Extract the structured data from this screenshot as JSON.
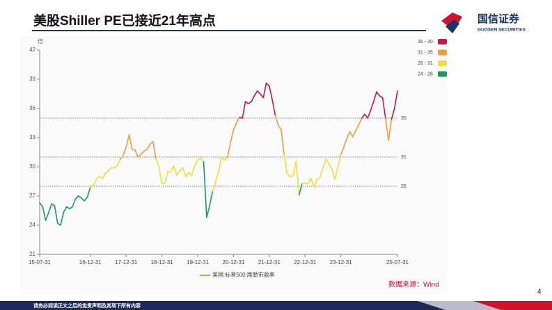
{
  "header": {
    "title": "美股Shiller PE已接近21年高点",
    "logo_name": "国信证券",
    "logo_sub": "GUOSEN SECURITIES"
  },
  "chart_data": {
    "type": "line",
    "y_label": "倍",
    "categories": [
      "15-07-31",
      null,
      null,
      null,
      null,
      null,
      null,
      null,
      null,
      null,
      null,
      null,
      null,
      null,
      null,
      null,
      null,
      "16-12-31",
      null,
      null,
      null,
      null,
      null,
      null,
      null,
      null,
      null,
      null,
      null,
      "17-12-31",
      null,
      null,
      null,
      null,
      null,
      null,
      null,
      null,
      null,
      null,
      null,
      "18-12-31",
      null,
      null,
      null,
      null,
      null,
      null,
      null,
      null,
      null,
      null,
      null,
      "19-12-31",
      null,
      null,
      null,
      null,
      null,
      null,
      null,
      null,
      null,
      null,
      null,
      "20-12-31",
      null,
      null,
      null,
      null,
      null,
      null,
      null,
      null,
      null,
      null,
      null,
      "21-12-31",
      null,
      null,
      null,
      null,
      null,
      null,
      null,
      null,
      null,
      null,
      null,
      "22-12-31",
      null,
      null,
      null,
      null,
      null,
      null,
      null,
      null,
      null,
      null,
      null,
      "23-12-31",
      null,
      null,
      null,
      null,
      null,
      null,
      null,
      null,
      null,
      null,
      null,
      null,
      null,
      null,
      null,
      null,
      null,
      null,
      "25-07-31"
    ],
    "series": [
      {
        "name": "美国:标普500:席勒市盈率",
        "color": "#f39a3d",
        "values": [
          26.3,
          25.9,
          24.5,
          25.3,
          26.2,
          26.0,
          24.2,
          24.0,
          25.3,
          25.9,
          25.7,
          25.9,
          26.7,
          27.0,
          26.8,
          26.5,
          26.9,
          27.9,
          28.1,
          28.7,
          29.0,
          28.8,
          29.3,
          29.6,
          29.9,
          29.9,
          30.1,
          30.8,
          31.2,
          32.0,
          33.3,
          31.8,
          31.7,
          31.0,
          31.3,
          31.6,
          31.8,
          32.3,
          32.6,
          30.8,
          30.0,
          28.3,
          28.3,
          29.5,
          29.5,
          30.1,
          29.1,
          29.6,
          29.9,
          29.0,
          29.4,
          29.1,
          30.1,
          30.7,
          30.9,
          30.5,
          24.8,
          26.0,
          27.5,
          28.5,
          29.5,
          31.0,
          30.7,
          31.0,
          32.5,
          33.8,
          34.5,
          35.1,
          35.0,
          36.7,
          36.5,
          36.7,
          37.3,
          37.8,
          37.5,
          37.1,
          38.6,
          38.3,
          36.9,
          35.3,
          34.3,
          33.8,
          31.2,
          29.3,
          29.0,
          29.1,
          30.6,
          27.1,
          28.3,
          28.3,
          28.3,
          28.8,
          27.9,
          28.7,
          28.9,
          29.9,
          30.8,
          30.3,
          29.8,
          28.7,
          30.0,
          31.3,
          32.0,
          32.9,
          33.6,
          33.1,
          33.7,
          34.3,
          35.0,
          35.4,
          35.0,
          35.8,
          36.7,
          37.7,
          37.3,
          37.1,
          35.0,
          32.7,
          34.9,
          36.0,
          37.8
        ]
      }
    ],
    "ylim": [
      21,
      42
    ],
    "yticks": [
      21,
      24,
      27,
      30,
      33,
      36,
      39,
      42
    ],
    "reference_lines": [
      35,
      31,
      28
    ],
    "pieces": [
      {
        "label": "35 - 30",
        "color": "#c8174a"
      },
      {
        "label": "31 - 35",
        "color": "#f39a3d"
      },
      {
        "label": "28 - 31",
        "color": "#f5dc3c"
      },
      {
        "label": "24 - 28",
        "color": "#179a5c"
      }
    ]
  },
  "source": "数据来源：Wind",
  "page_number": "4",
  "footer": "请务必阅读正文之后的免责声明及其项下所有内容"
}
